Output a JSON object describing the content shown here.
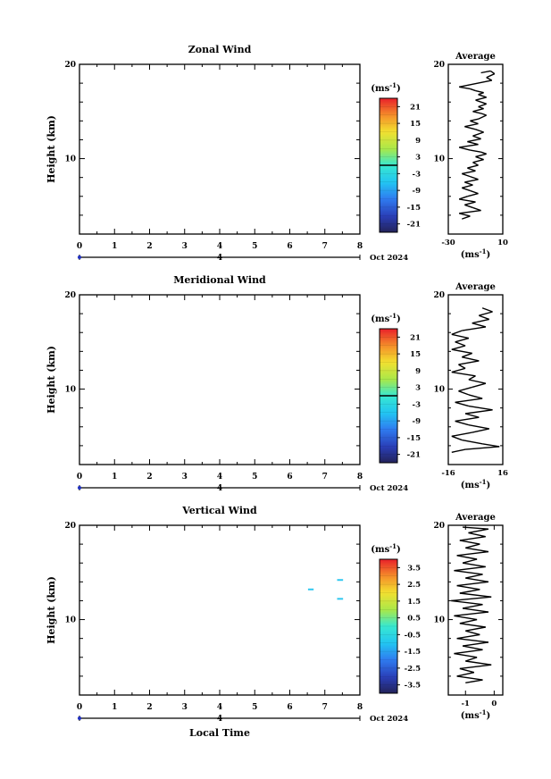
{
  "chart_data": [
    {
      "type": "heatmap",
      "title": "Zonal Wind",
      "ylabel": "Height (km)",
      "xlabel": "",
      "x_ticks": [
        "0",
        "1",
        "2",
        "3",
        "4",
        "5",
        "6",
        "7",
        "8"
      ],
      "y_ticks": [
        "10",
        "20"
      ],
      "xlim": [
        0,
        8
      ],
      "ylim": [
        2,
        20
      ],
      "date_label": "Oct 2024",
      "date_axis_tick": "4",
      "colorbar": {
        "unit": "(ms",
        "unit_exp": "-1",
        "unit_close": ")",
        "ticks": [
          "21",
          "15",
          "9",
          "3",
          "-3",
          "-9",
          "-15",
          "-21"
        ]
      },
      "cells": [],
      "average_panel": {
        "title": "Average",
        "y_ticks": [
          "10",
          "20"
        ],
        "x_ticks": [
          "-30",
          "10"
        ],
        "xlim": [
          -30,
          10
        ],
        "xlabel": "(ms",
        "xlabel_exp": "-1",
        "xlabel_close": ")",
        "profile": [
          [
            -6,
            19.1
          ],
          [
            1,
            19.3
          ],
          [
            4,
            19.0
          ],
          [
            -2,
            18.6
          ],
          [
            2,
            18.3
          ],
          [
            -22,
            17.6
          ],
          [
            -14,
            17.4
          ],
          [
            -10,
            17.2
          ],
          [
            -4,
            17.0
          ],
          [
            -8,
            16.8
          ],
          [
            -2,
            16.5
          ],
          [
            -10,
            16.2
          ],
          [
            -6,
            16.0
          ],
          [
            -2,
            15.8
          ],
          [
            -8,
            15.5
          ],
          [
            -4,
            15.3
          ],
          [
            -12,
            15.0
          ],
          [
            -6,
            14.8
          ],
          [
            -2,
            14.6
          ],
          [
            -8,
            14.2
          ],
          [
            -14,
            14.0
          ],
          [
            -8,
            13.7
          ],
          [
            -18,
            13.4
          ],
          [
            -10,
            13.1
          ],
          [
            -4,
            12.8
          ],
          [
            -12,
            12.4
          ],
          [
            -6,
            12.1
          ],
          [
            -16,
            11.8
          ],
          [
            -8,
            11.5
          ],
          [
            -22,
            11.2
          ],
          [
            -14,
            10.9
          ],
          [
            -6,
            10.7
          ],
          [
            -2,
            10.5
          ],
          [
            -10,
            10.2
          ],
          [
            -4,
            9.9
          ],
          [
            -12,
            9.6
          ],
          [
            -8,
            9.3
          ],
          [
            -16,
            9.0
          ],
          [
            -10,
            8.7
          ],
          [
            -20,
            8.4
          ],
          [
            -14,
            8.1
          ],
          [
            -8,
            7.8
          ],
          [
            -18,
            7.5
          ],
          [
            -12,
            7.2
          ],
          [
            -20,
            6.9
          ],
          [
            -14,
            6.6
          ],
          [
            -8,
            6.3
          ],
          [
            -16,
            6.0
          ],
          [
            -22,
            5.7
          ],
          [
            -10,
            5.4
          ],
          [
            -18,
            5.1
          ],
          [
            -12,
            4.8
          ],
          [
            -6,
            4.5
          ],
          [
            -22,
            4.2
          ],
          [
            -14,
            3.9
          ],
          [
            -20,
            3.6
          ]
        ]
      }
    },
    {
      "type": "heatmap",
      "title": "Meridional Wind",
      "ylabel": "Height (km)",
      "xlabel": "",
      "x_ticks": [
        "0",
        "1",
        "2",
        "3",
        "4",
        "5",
        "6",
        "7",
        "8"
      ],
      "y_ticks": [
        "10",
        "20"
      ],
      "xlim": [
        0,
        8
      ],
      "ylim": [
        2,
        20
      ],
      "date_label": "Oct 2024",
      "date_axis_tick": "4",
      "colorbar": {
        "unit": "(ms",
        "unit_exp": "-1",
        "unit_close": ")",
        "ticks": [
          "21",
          "15",
          "9",
          "3",
          "-3",
          "-9",
          "-15",
          "-21"
        ]
      },
      "cells": [],
      "average_panel": {
        "title": "Average",
        "y_ticks": [
          "10",
          "20"
        ],
        "x_ticks": [
          "-16",
          "16"
        ],
        "xlim": [
          -16,
          16
        ],
        "xlabel": "(ms",
        "xlabel_exp": "-1",
        "xlabel_close": ")",
        "profile": [
          [
            4,
            18.6
          ],
          [
            10,
            18.2
          ],
          [
            2,
            17.8
          ],
          [
            8,
            17.4
          ],
          [
            -2,
            17.0
          ],
          [
            6,
            16.6
          ],
          [
            -8,
            16.2
          ],
          [
            -14,
            15.8
          ],
          [
            -4,
            15.4
          ],
          [
            -12,
            15.0
          ],
          [
            -6,
            14.6
          ],
          [
            -14,
            14.2
          ],
          [
            -2,
            13.8
          ],
          [
            -8,
            13.4
          ],
          [
            2,
            13.0
          ],
          [
            -10,
            12.6
          ],
          [
            -6,
            12.2
          ],
          [
            -14,
            11.8
          ],
          [
            0,
            11.4
          ],
          [
            -4,
            11.0
          ],
          [
            6,
            10.6
          ],
          [
            -2,
            10.2
          ],
          [
            -10,
            9.8
          ],
          [
            -4,
            9.4
          ],
          [
            4,
            9.0
          ],
          [
            -12,
            8.6
          ],
          [
            -4,
            8.2
          ],
          [
            10,
            7.8
          ],
          [
            -6,
            7.4
          ],
          [
            2,
            7.0
          ],
          [
            -12,
            6.6
          ],
          [
            -4,
            6.2
          ],
          [
            8,
            5.8
          ],
          [
            -2,
            5.4
          ],
          [
            -14,
            5.0
          ],
          [
            -8,
            4.6
          ],
          [
            4,
            4.2
          ],
          [
            14,
            3.9
          ],
          [
            -6,
            3.6
          ],
          [
            -14,
            3.3
          ]
        ]
      }
    },
    {
      "type": "heatmap",
      "title": "Vertical Wind",
      "ylabel": "Height (km)",
      "xlabel": "Local Time",
      "x_ticks": [
        "0",
        "1",
        "2",
        "3",
        "4",
        "5",
        "6",
        "7",
        "8"
      ],
      "y_ticks": [
        "10",
        "20"
      ],
      "xlim": [
        0,
        8
      ],
      "ylim": [
        2,
        20
      ],
      "date_label": "Oct 2024",
      "date_axis_tick": "4",
      "colorbar": {
        "unit": "(ms",
        "unit_exp": "-1",
        "unit_close": ")",
        "ticks": [
          "3.5",
          "2.5",
          "1.5",
          "0.5",
          "-0.5",
          "-1.5",
          "-2.5",
          "-3.5"
        ]
      },
      "cells": [
        {
          "x0": 6.52,
          "x1": 6.68,
          "y": 13.2,
          "color": "#30c8f0"
        },
        {
          "x0": 7.35,
          "x1": 7.52,
          "y": 14.2,
          "color": "#30c8f0"
        },
        {
          "x0": 7.35,
          "x1": 7.52,
          "y": 12.2,
          "color": "#30c8f0"
        }
      ],
      "average_panel": {
        "title": "Average",
        "y_ticks": [
          "10",
          "20"
        ],
        "x_ticks": [
          "-1",
          "0"
        ],
        "xlim": [
          -1.6,
          0.3
        ],
        "xlabel": "(ms",
        "xlabel_exp": "-1",
        "xlabel_close": ")",
        "profile": [
          [
            -1.1,
            19.8
          ],
          [
            -0.2,
            19.6
          ],
          [
            -0.9,
            19.2
          ],
          [
            -0.3,
            18.8
          ],
          [
            -1.2,
            18.4
          ],
          [
            -0.5,
            18.0
          ],
          [
            -1.0,
            17.6
          ],
          [
            -0.2,
            17.2
          ],
          [
            -1.3,
            16.8
          ],
          [
            -0.6,
            16.4
          ],
          [
            -1.1,
            16.0
          ],
          [
            -0.3,
            15.6
          ],
          [
            -1.4,
            15.2
          ],
          [
            -0.4,
            14.8
          ],
          [
            -1.0,
            14.4
          ],
          [
            -0.2,
            14.0
          ],
          [
            -1.3,
            13.6
          ],
          [
            -0.5,
            13.2
          ],
          [
            -1.2,
            12.8
          ],
          [
            -0.1,
            12.4
          ],
          [
            -1.5,
            12.0
          ],
          [
            -0.4,
            11.6
          ],
          [
            -1.1,
            11.2
          ],
          [
            -0.2,
            10.8
          ],
          [
            -1.4,
            10.4
          ],
          [
            -0.6,
            10.0
          ],
          [
            -1.2,
            9.6
          ],
          [
            -0.3,
            9.2
          ],
          [
            -1.0,
            8.8
          ],
          [
            -0.5,
            8.4
          ],
          [
            -1.3,
            8.0
          ],
          [
            -0.2,
            7.6
          ],
          [
            -1.1,
            7.2
          ],
          [
            -0.4,
            6.8
          ],
          [
            -1.4,
            6.4
          ],
          [
            -0.6,
            6.0
          ],
          [
            -1.0,
            5.6
          ],
          [
            -0.1,
            5.2
          ],
          [
            -1.2,
            4.8
          ],
          [
            -0.7,
            4.4
          ],
          [
            -1.3,
            4.0
          ],
          [
            -0.4,
            3.6
          ],
          [
            -1.0,
            3.3
          ]
        ]
      }
    }
  ]
}
